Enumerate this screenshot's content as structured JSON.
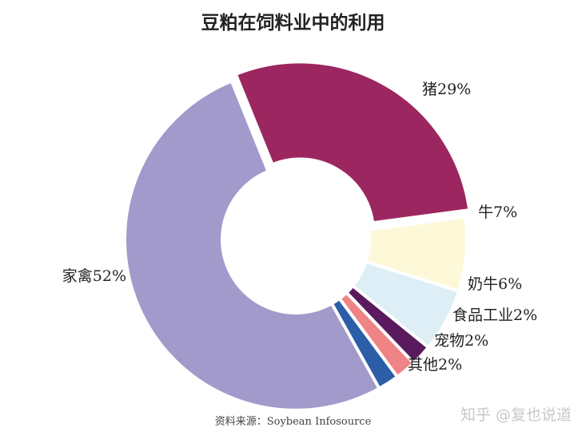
{
  "chart_data": {
    "type": "pie",
    "variant": "donut",
    "title": "豆粕在饲料业中的利用",
    "slices": [
      {
        "label": "猪",
        "value": 29,
        "display": "猪29%",
        "color": "#9c2760"
      },
      {
        "label": "牛",
        "value": 7,
        "display": "牛7%",
        "color": "#fdf8d8"
      },
      {
        "label": "奶牛",
        "value": 6,
        "display": "奶牛6%",
        "color": "#ddeef6"
      },
      {
        "label": "食品工业",
        "value": 2,
        "display": "食品工业2%",
        "color": "#5a1a5e"
      },
      {
        "label": "宠物",
        "value": 2,
        "display": "宠物2%",
        "color": "#ee8486"
      },
      {
        "label": "其他",
        "value": 2,
        "display": "其他2%",
        "color": "#2c5ea8"
      },
      {
        "label": "家禽",
        "value": 52,
        "display": "家禽52%",
        "color": "#a19acb"
      }
    ],
    "start_angle_deg": -22,
    "direction": "clockwise-from-top"
  },
  "source": "资料来源：Soybean Infosource",
  "watermark": "知乎 @复也说道"
}
